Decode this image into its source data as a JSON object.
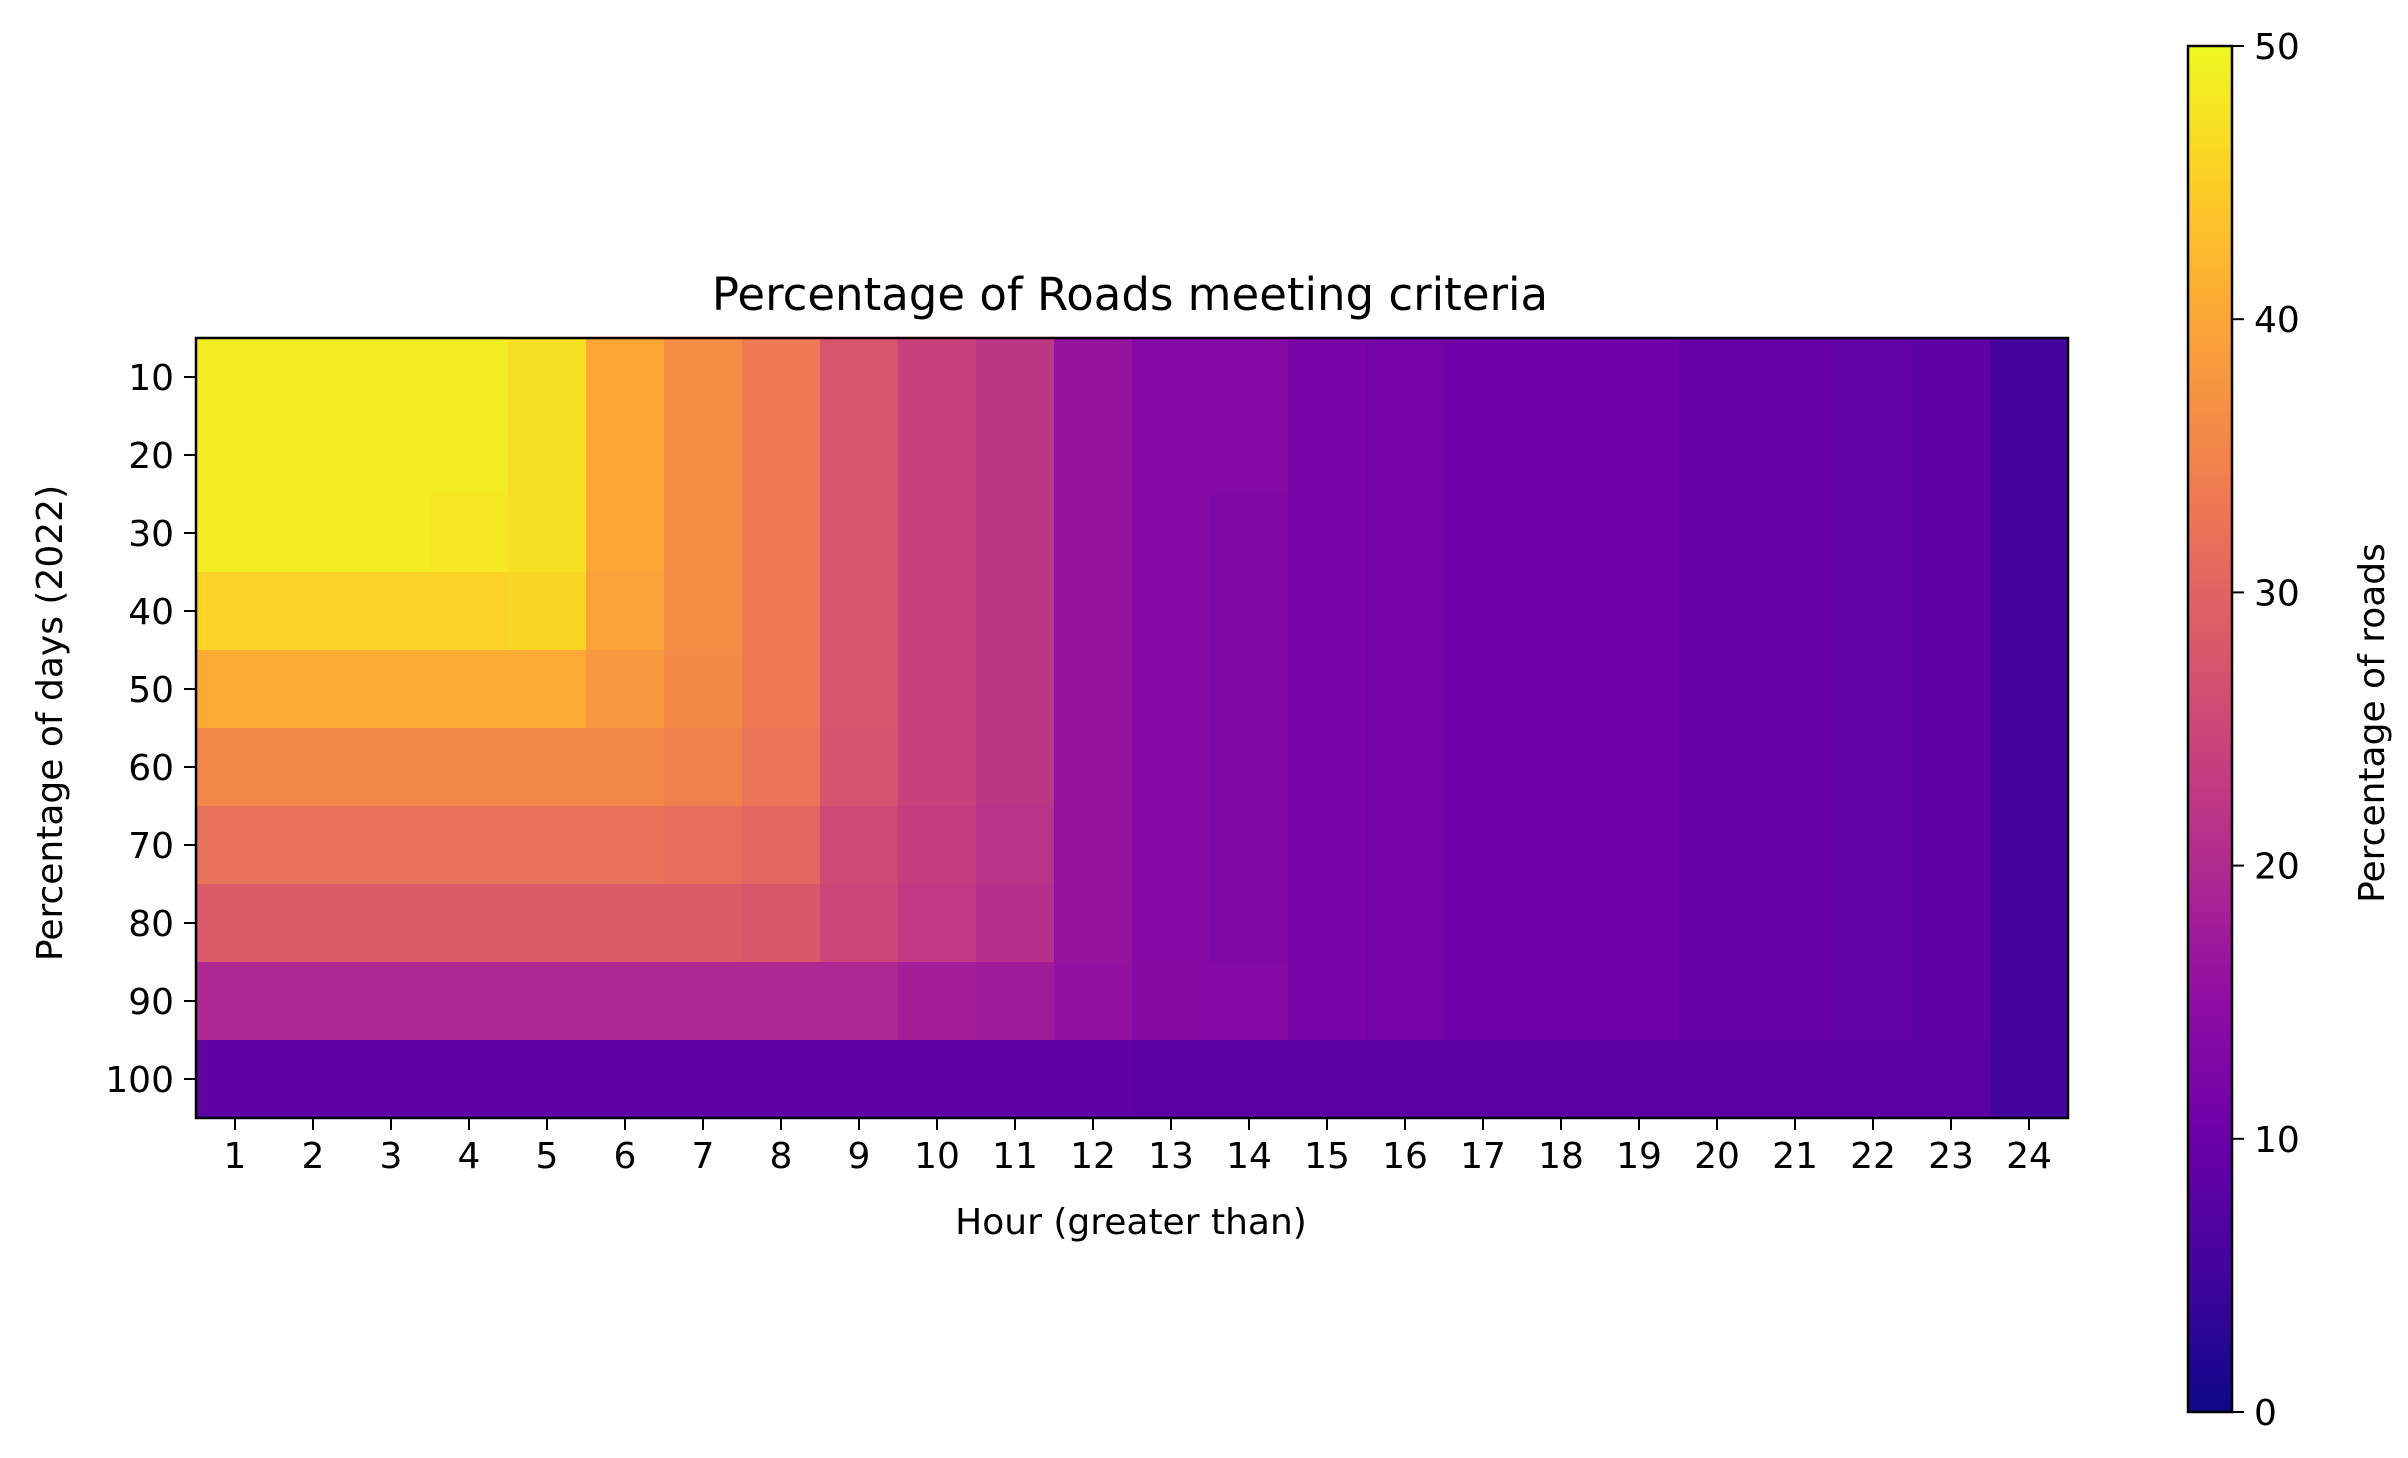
{
  "chart_data": {
    "type": "heatmap",
    "title": "Percentage of Roads meeting criteria",
    "xlabel": "Hour (greater than)",
    "ylabel": "Percentage of days (2022)",
    "x": [
      "1",
      "2",
      "3",
      "4",
      "5",
      "6",
      "7",
      "8",
      "9",
      "10",
      "11",
      "12",
      "13",
      "14",
      "15",
      "16",
      "17",
      "18",
      "19",
      "20",
      "21",
      "22",
      "23",
      "24"
    ],
    "y": [
      "10",
      "20",
      "30",
      "40",
      "50",
      "60",
      "70",
      "80",
      "90",
      "100"
    ],
    "colormap": "plasma",
    "vmin": 0,
    "vmax": 50,
    "colorbar": {
      "label": "Percentage of roads",
      "ticks": [
        "0",
        "10",
        "20",
        "30",
        "40",
        "50"
      ]
    },
    "values": [
      [
        48.5,
        48.5,
        48.5,
        48.5,
        47.0,
        40.0,
        36.5,
        33.5,
        27.5,
        24.0,
        22.0,
        16.0,
        13.5,
        13.5,
        12.0,
        11.5,
        10.5,
        10.5,
        10.5,
        9.5,
        9.5,
        9.0,
        8.5,
        5.5
      ],
      [
        48.5,
        48.5,
        48.5,
        48.5,
        47.0,
        40.0,
        36.5,
        33.5,
        27.5,
        24.0,
        22.0,
        16.0,
        13.5,
        13.5,
        12.0,
        11.5,
        10.5,
        10.5,
        10.5,
        9.5,
        9.5,
        9.0,
        8.5,
        5.5
      ],
      [
        48.5,
        48.5,
        48.5,
        48.0,
        47.0,
        40.0,
        36.5,
        33.5,
        27.5,
        24.0,
        22.0,
        16.0,
        13.5,
        13.0,
        12.0,
        11.5,
        10.5,
        10.5,
        10.5,
        9.5,
        9.5,
        9.0,
        8.5,
        5.5
      ],
      [
        45.5,
        45.5,
        45.5,
        45.5,
        46.0,
        39.5,
        36.5,
        33.5,
        27.5,
        24.0,
        22.0,
        16.0,
        13.5,
        13.0,
        12.0,
        11.5,
        10.5,
        10.5,
        10.5,
        9.5,
        9.5,
        9.0,
        8.5,
        5.5
      ],
      [
        40.5,
        40.5,
        40.5,
        40.5,
        40.5,
        38.0,
        36.0,
        33.5,
        27.5,
        24.0,
        22.0,
        16.0,
        13.5,
        13.0,
        12.0,
        11.5,
        10.5,
        10.5,
        10.5,
        9.5,
        9.5,
        9.0,
        8.5,
        5.5
      ],
      [
        35.5,
        35.5,
        35.5,
        35.5,
        35.5,
        35.5,
        34.5,
        32.5,
        27.0,
        24.0,
        22.0,
        16.0,
        13.5,
        13.0,
        12.0,
        11.5,
        10.5,
        10.5,
        10.5,
        9.5,
        9.5,
        9.0,
        8.5,
        5.5
      ],
      [
        32.0,
        32.0,
        32.0,
        32.0,
        32.0,
        32.0,
        31.5,
        30.5,
        25.5,
        23.5,
        21.5,
        16.0,
        13.5,
        13.0,
        12.0,
        11.5,
        10.5,
        10.5,
        10.5,
        9.5,
        9.5,
        9.0,
        8.5,
        5.5
      ],
      [
        28.5,
        28.5,
        28.5,
        28.5,
        28.5,
        28.5,
        28.5,
        28.0,
        25.0,
        22.5,
        21.0,
        16.0,
        13.5,
        13.0,
        12.0,
        11.5,
        10.5,
        10.5,
        10.5,
        9.5,
        9.5,
        9.0,
        8.5,
        5.5
      ],
      [
        19.5,
        19.5,
        19.5,
        19.5,
        19.5,
        19.5,
        19.5,
        19.5,
        19.5,
        18.0,
        17.5,
        15.5,
        14.0,
        13.5,
        12.0,
        11.5,
        10.5,
        10.5,
        10.5,
        9.5,
        9.5,
        9.0,
        8.5,
        5.5
      ],
      [
        8.5,
        8.5,
        8.5,
        8.5,
        8.5,
        8.5,
        8.5,
        8.5,
        8.5,
        8.5,
        8.5,
        8.5,
        8.0,
        8.0,
        8.0,
        8.0,
        8.0,
        8.0,
        8.0,
        8.0,
        8.0,
        8.0,
        8.0,
        5.5
      ]
    ]
  }
}
